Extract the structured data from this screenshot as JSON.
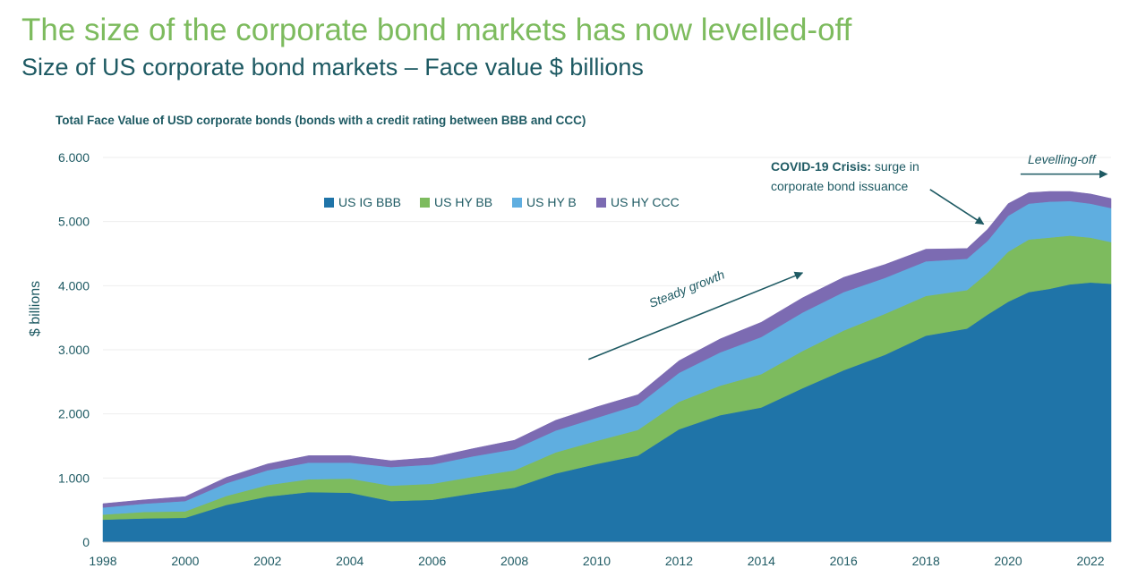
{
  "headline": "The size of the corporate bond markets has now levelled-off",
  "subheadline": "Size of US corporate bond markets – Face value $ billions",
  "chart_data": {
    "type": "area",
    "stacked": true,
    "title": "Total Face Value of USD corporate bonds (bonds with a credit rating between BBB and CCC)",
    "ylabel": "$ billions",
    "xlabel": "",
    "xlim": [
      1998,
      2022.5
    ],
    "ylim": [
      0,
      6000
    ],
    "x_ticks": [
      "1998",
      "2000",
      "2002",
      "2004",
      "2006",
      "2008",
      "2010",
      "2012",
      "2014",
      "2016",
      "2018",
      "2020",
      "2022"
    ],
    "y_ticks": [
      {
        "value": 0,
        "label": "0"
      },
      {
        "value": 1000,
        "label": "1.000"
      },
      {
        "value": 2000,
        "label": "2.000"
      },
      {
        "value": 3000,
        "label": "3.000"
      },
      {
        "value": 4000,
        "label": "4.000"
      },
      {
        "value": 5000,
        "label": "5.000"
      },
      {
        "value": 6000,
        "label": "6.000"
      }
    ],
    "grid": "horizontal",
    "legend_position": "top",
    "x": [
      1998,
      1999,
      2000,
      2001,
      2002,
      2003,
      2004,
      2005,
      2006,
      2007,
      2008,
      2009,
      2010,
      2011,
      2012,
      2013,
      2014,
      2015,
      2016,
      2017,
      2018,
      2019,
      2019.5,
      2020,
      2020.5,
      2021,
      2021.5,
      2022,
      2022.5
    ],
    "series": [
      {
        "name": "US IG BBB",
        "color": "#1f74a8",
        "values": [
          350,
          370,
          380,
          580,
          710,
          780,
          770,
          640,
          660,
          760,
          850,
          1070,
          1220,
          1350,
          1760,
          1980,
          2100,
          2400,
          2680,
          2920,
          3220,
          3330,
          3550,
          3750,
          3900,
          3950,
          4020,
          4050,
          4030
        ]
      },
      {
        "name": "US HY BB",
        "color": "#7dbb5e",
        "values": [
          80,
          100,
          100,
          140,
          180,
          200,
          220,
          240,
          250,
          260,
          270,
          330,
          360,
          400,
          430,
          460,
          520,
          580,
          620,
          640,
          620,
          600,
          650,
          780,
          820,
          800,
          760,
          700,
          650
        ]
      },
      {
        "name": "US HY B",
        "color": "#5faee0",
        "values": [
          110,
          130,
          160,
          200,
          230,
          260,
          250,
          290,
          300,
          320,
          330,
          340,
          360,
          390,
          450,
          520,
          580,
          600,
          600,
          560,
          540,
          490,
          500,
          560,
          560,
          560,
          540,
          530,
          530
        ]
      },
      {
        "name": "US HY CCC",
        "color": "#7c6bb2",
        "values": [
          60,
          60,
          70,
          90,
          100,
          110,
          110,
          100,
          110,
          120,
          140,
          160,
          170,
          160,
          190,
          210,
          230,
          230,
          230,
          210,
          190,
          160,
          180,
          190,
          170,
          160,
          150,
          150,
          150
        ]
      }
    ],
    "annotations": [
      {
        "id": "steady",
        "text": "Steady growth",
        "arrow_from": [
          2009.8,
          2850
        ],
        "arrow_to": [
          2015,
          4200
        ]
      },
      {
        "id": "covid",
        "text_bold": "COVID-19 Crisis:",
        "text_rest": " surge in",
        "text_line2": "corporate bond issuance",
        "arrow_from": [
          2018.1,
          5500
        ],
        "arrow_to": [
          2019.4,
          4960
        ]
      },
      {
        "id": "level",
        "text": "Levelling-off",
        "arrow_from": [
          2020.3,
          5740
        ],
        "arrow_to": [
          2022.4,
          5740
        ]
      }
    ]
  }
}
